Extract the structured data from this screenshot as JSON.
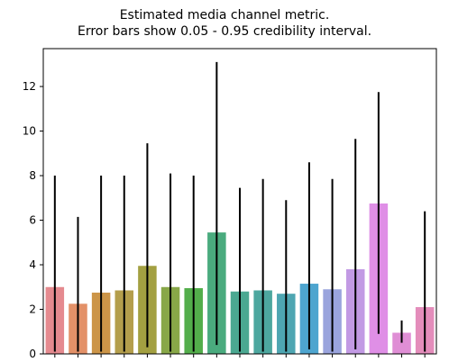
{
  "chart_data": {
    "type": "bar",
    "title_line1": "Estimated media channel metric.",
    "title_line2": "Error bars show 0.05 - 0.95 credibility interval.",
    "xlabel": "",
    "ylabel": "",
    "ylim": [
      0,
      13.7
    ],
    "yticks": [
      0,
      2,
      4,
      6,
      8,
      10,
      12
    ],
    "x_tick_labels_visible": false,
    "bars": [
      {
        "value": 3.0,
        "low": 0.1,
        "high": 8.0,
        "color": "#e58a8f"
      },
      {
        "value": 2.25,
        "low": 0.1,
        "high": 6.15,
        "color": "#e39168"
      },
      {
        "value": 2.75,
        "low": 0.1,
        "high": 8.0,
        "color": "#cc9548"
      },
      {
        "value": 2.85,
        "low": 0.1,
        "high": 8.0,
        "color": "#b49e4c"
      },
      {
        "value": 3.95,
        "low": 0.3,
        "high": 9.45,
        "color": "#a3a041"
      },
      {
        "value": 3.0,
        "low": 0.1,
        "high": 8.1,
        "color": "#88a748"
      },
      {
        "value": 2.95,
        "low": 0.1,
        "high": 8.0,
        "color": "#53ae4b"
      },
      {
        "value": 5.45,
        "low": 0.4,
        "high": 13.1,
        "color": "#4aab7e"
      },
      {
        "value": 2.8,
        "low": 0.1,
        "high": 7.45,
        "color": "#4ba891"
      },
      {
        "value": 2.85,
        "low": 0.1,
        "high": 7.85,
        "color": "#4da79f"
      },
      {
        "value": 2.7,
        "low": 0.1,
        "high": 6.9,
        "color": "#4ea6b2"
      },
      {
        "value": 3.15,
        "low": 0.2,
        "high": 8.6,
        "color": "#4ea5cf"
      },
      {
        "value": 2.9,
        "low": 0.1,
        "high": 7.85,
        "color": "#9aa4dd"
      },
      {
        "value": 3.8,
        "low": 0.2,
        "high": 9.65,
        "color": "#c29ae4"
      },
      {
        "value": 6.75,
        "low": 0.9,
        "high": 11.75,
        "color": "#df8fe6"
      },
      {
        "value": 0.95,
        "low": 0.5,
        "high": 1.5,
        "color": "#df8ed5"
      },
      {
        "value": 2.1,
        "low": 0.1,
        "high": 6.4,
        "color": "#e48dbb"
      }
    ]
  }
}
